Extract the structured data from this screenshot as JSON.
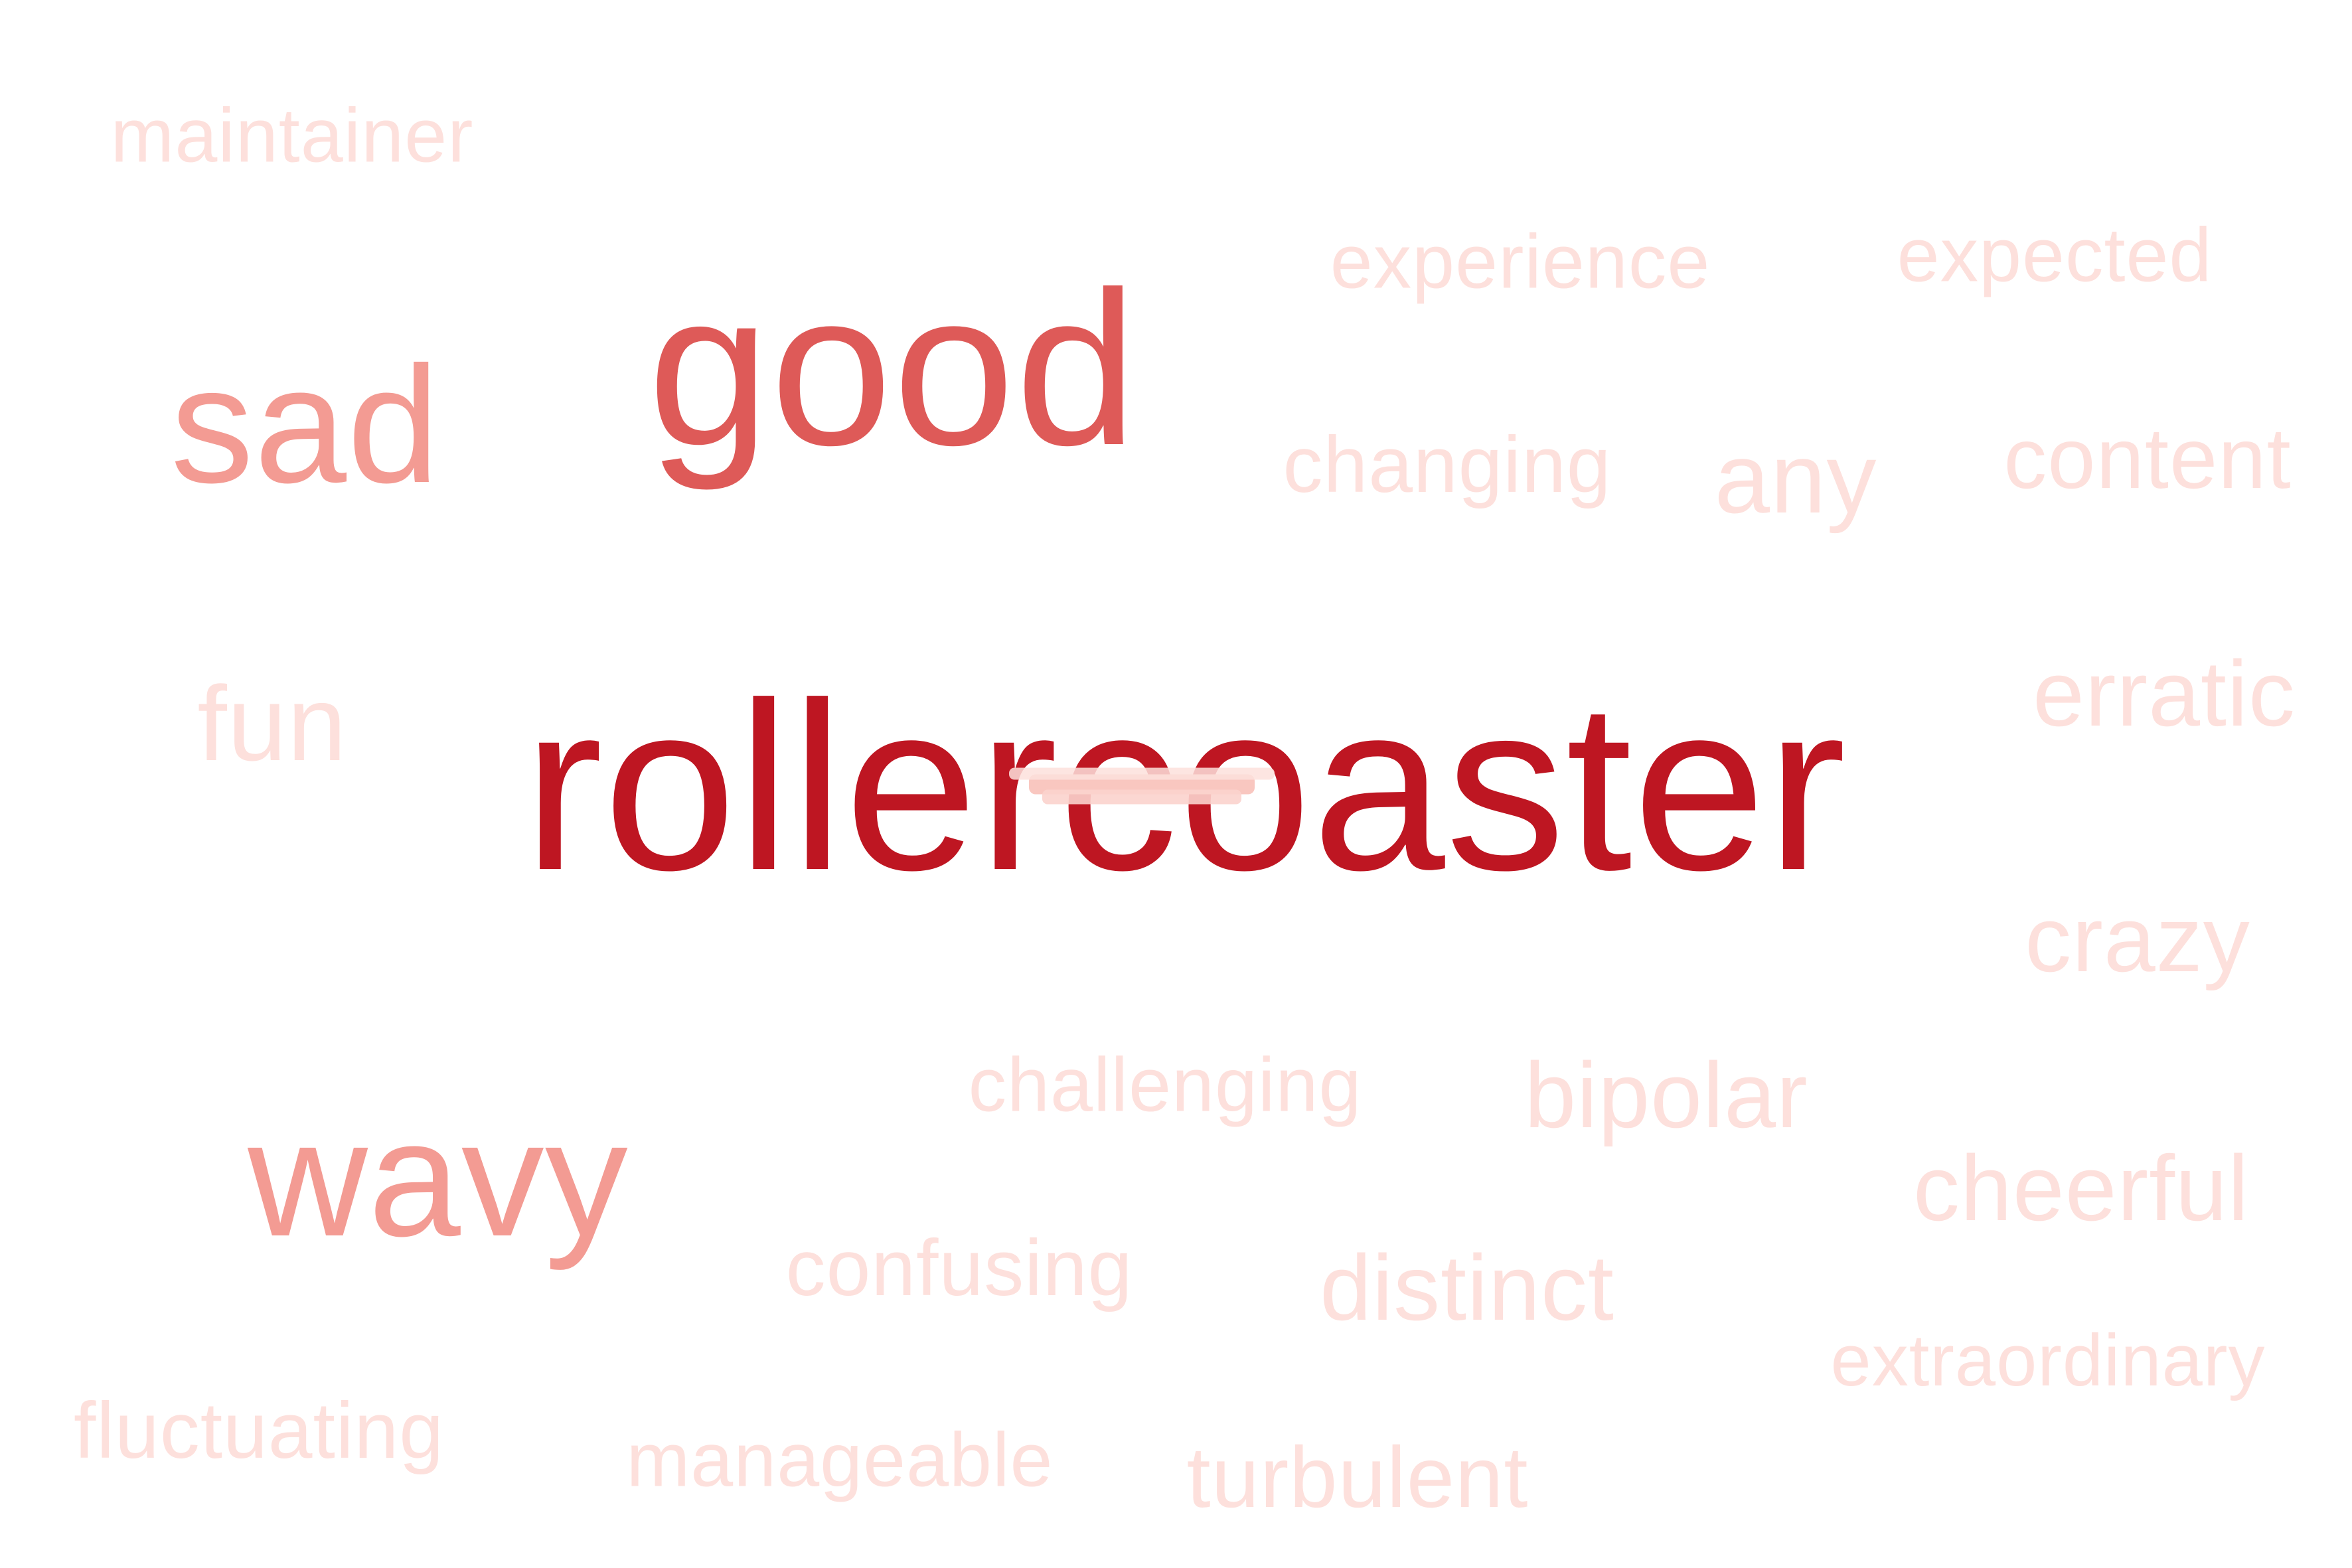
{
  "colors": {
    "background": "#ffffff",
    "darkest": "#be1622",
    "dark": "#de5a58",
    "medium": "#f39b93",
    "light": "#fde0dc"
  },
  "words": [
    {
      "key": "rollercoaster",
      "text": "rollercoaster",
      "color": "#be1622"
    },
    {
      "key": "good",
      "text": "good",
      "color": "#de5a58"
    },
    {
      "key": "wavy",
      "text": "wavy",
      "color": "#f39b93"
    },
    {
      "key": "sad",
      "text": "sad",
      "color": "#f39b93"
    },
    {
      "key": "any",
      "text": "any",
      "color": "#fde0dc"
    },
    {
      "key": "fun",
      "text": "fun",
      "color": "#fde0dc"
    },
    {
      "key": "erratic",
      "text": "erratic",
      "color": "#fde0dc"
    },
    {
      "key": "crazy",
      "text": "crazy",
      "color": "#fde0dc"
    },
    {
      "key": "bipolar",
      "text": "bipolar",
      "color": "#fde0dc"
    },
    {
      "key": "distinct",
      "text": "distinct",
      "color": "#fde0dc"
    },
    {
      "key": "cheerful",
      "text": "cheerful",
      "color": "#fde0dc"
    },
    {
      "key": "content",
      "text": "content",
      "color": "#fde0dc"
    },
    {
      "key": "turbulent",
      "text": "turbulent",
      "color": "#fde0dc"
    },
    {
      "key": "changing",
      "text": "changing",
      "color": "#fde0dc"
    },
    {
      "key": "experience",
      "text": "experience",
      "color": "#fde0dc"
    },
    {
      "key": "expected",
      "text": "expected",
      "color": "#fde0dc"
    },
    {
      "key": "maintainer",
      "text": "maintainer",
      "color": "#fde0dc"
    },
    {
      "key": "challenging",
      "text": "challenging",
      "color": "#fde0dc"
    },
    {
      "key": "confusing",
      "text": "confusing",
      "color": "#fde0dc"
    },
    {
      "key": "fluctuating",
      "text": "fluctuating",
      "color": "#fde0dc"
    },
    {
      "key": "manageable",
      "text": "manageable",
      "color": "#fde0dc"
    },
    {
      "key": "extraordinary",
      "text": "extraordinary",
      "color": "#fde0dc"
    }
  ]
}
